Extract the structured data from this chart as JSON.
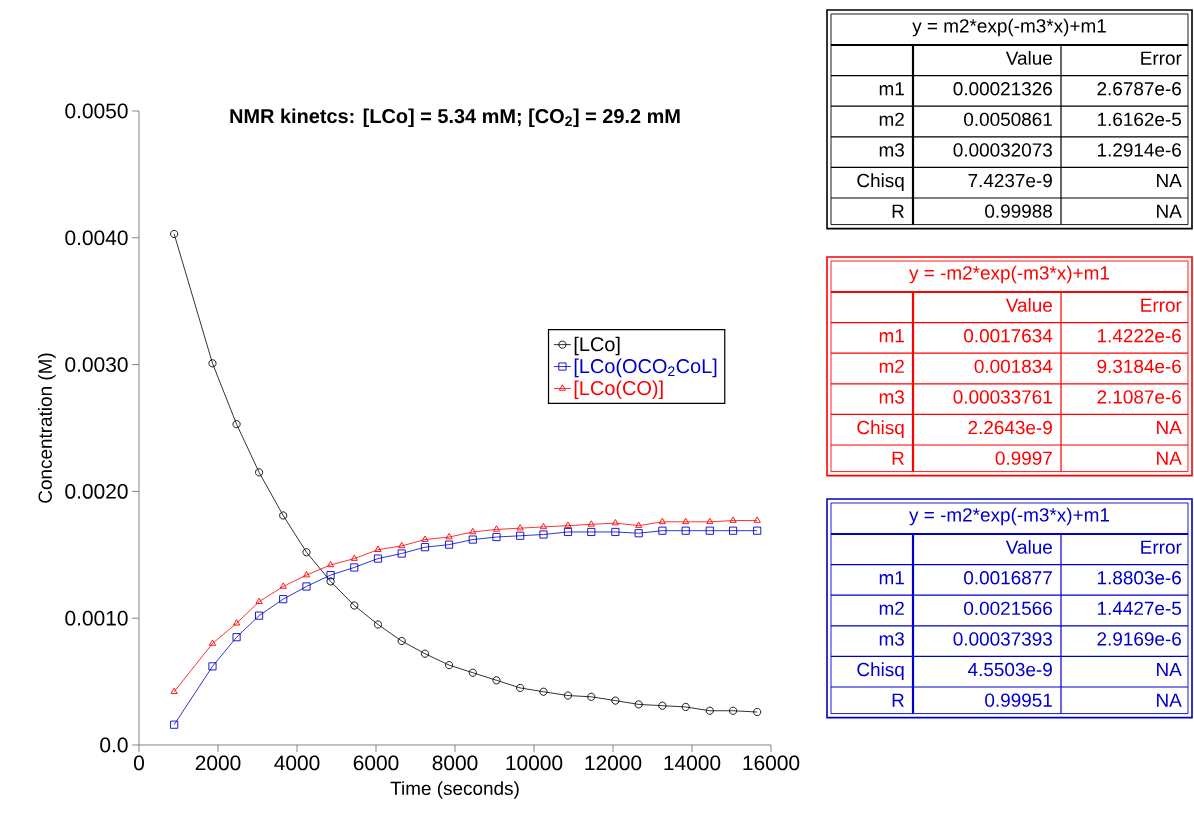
{
  "chart_data": [
    {
      "type": "line",
      "title": "**NMR kinetcs: [LCo] = 5.34 mM; [CO$_{2}$] = 29.2 mM**",
      "xlabel": "Time (seconds)",
      "ylabel": "Concentration (M)",
      "x": [
        890,
        1860,
        2470,
        3040,
        3650,
        4240,
        4850,
        5450,
        6050,
        6650,
        7240,
        7850,
        8450,
        9050,
        9650,
        10240,
        10860,
        11450,
        12060,
        12650,
        13250,
        13840,
        14450,
        15040,
        15650
      ],
      "series": [
        {
          "name": "[LCo]",
          "color": "#000000",
          "marker": "circle",
          "values": [
            0.00403,
            0.00301,
            0.00253,
            0.00215,
            0.00181,
            0.00152,
            0.00129,
            0.0011,
            0.00095,
            0.00082,
            0.00072,
            0.00063,
            0.00057,
            0.00051,
            0.00045,
            0.00042,
            0.00039,
            0.00038,
            0.00035,
            0.00032,
            0.00031,
            0.0003,
            0.00027,
            0.00027,
            0.00026
          ]
        },
        {
          "name": "[LCo(OCO$_{2}$CoL]",
          "color": "#0000cc",
          "marker": "square",
          "values": [
            0.00016,
            0.00062,
            0.00085,
            0.00102,
            0.00115,
            0.00125,
            0.00134,
            0.0014,
            0.00147,
            0.00151,
            0.00156,
            0.00158,
            0.00162,
            0.00164,
            0.00165,
            0.00166,
            0.00168,
            0.00168,
            0.00168,
            0.00167,
            0.00169,
            0.00169,
            0.00169,
            0.00169,
            0.00169
          ]
        },
        {
          "name": "[LCo(CO)]",
          "color": "#ff0000",
          "marker": "triangle",
          "values": [
            0.00042,
            0.0008,
            0.00096,
            0.00113,
            0.00125,
            0.00134,
            0.00142,
            0.00147,
            0.00154,
            0.00157,
            0.00162,
            0.00164,
            0.00168,
            0.0017,
            0.00171,
            0.00172,
            0.00173,
            0.00174,
            0.00175,
            0.00173,
            0.00176,
            0.00176,
            0.00176,
            0.00177,
            0.00177
          ]
        }
      ],
      "xlim": [
        0,
        16000
      ],
      "ylim": [
        0,
        0.005
      ],
      "xticks": [
        0,
        2000,
        4000,
        6000,
        8000,
        10000,
        12000,
        14000,
        16000
      ],
      "yticks": [
        {
          "value": 0,
          "label": "0.0"
        },
        {
          "value": 0.001,
          "label": "0.0010"
        },
        {
          "value": 0.002,
          "label": "0.0020"
        },
        {
          "value": 0.003,
          "label": "0.0030"
        },
        {
          "value": 0.004,
          "label": "0.0040"
        },
        {
          "value": 0.005,
          "label": "0.0050"
        }
      ],
      "legend": "right"
    },
    {
      "type": "other",
      "color": "#000000",
      "title": "y = m2*exp(-m3*x)+m1",
      "annotations": [
        "Value",
        "Error",
        "m1",
        "0.00021326",
        "2.6787e-6",
        "m2",
        "0.0050861",
        "1.6162e-5",
        "m3",
        "0.00032073",
        "1.2914e-6",
        "Chisq",
        "7.4237e-9",
        "NA",
        "R",
        "0.99988",
        "NA"
      ]
    },
    {
      "type": "other",
      "color": "#ff0000",
      "title": "y = -m2*exp(-m3*x)+m1",
      "annotations": [
        "Value",
        "Error",
        "m1",
        "0.0017634",
        "1.4222e-6",
        "m2",
        "0.001834",
        "9.3184e-6",
        "m3",
        "0.00033761",
        "2.1087e-6",
        "Chisq",
        "2.2643e-9",
        "NA",
        "R",
        "0.9997",
        "NA"
      ]
    },
    {
      "type": "other",
      "color": "#0000cc",
      "title": "y = -m2*exp(-m3*x)+m1",
      "annotations": [
        "Value",
        "Error",
        "m1",
        "0.0016877",
        "1.8803e-6",
        "m2",
        "0.0021566",
        "1.4427e-5",
        "m3",
        "0.00037393",
        "2.9169e-6",
        "Chisq",
        "4.5503e-9",
        "NA",
        "R",
        "0.99951",
        "NA"
      ]
    }
  ]
}
